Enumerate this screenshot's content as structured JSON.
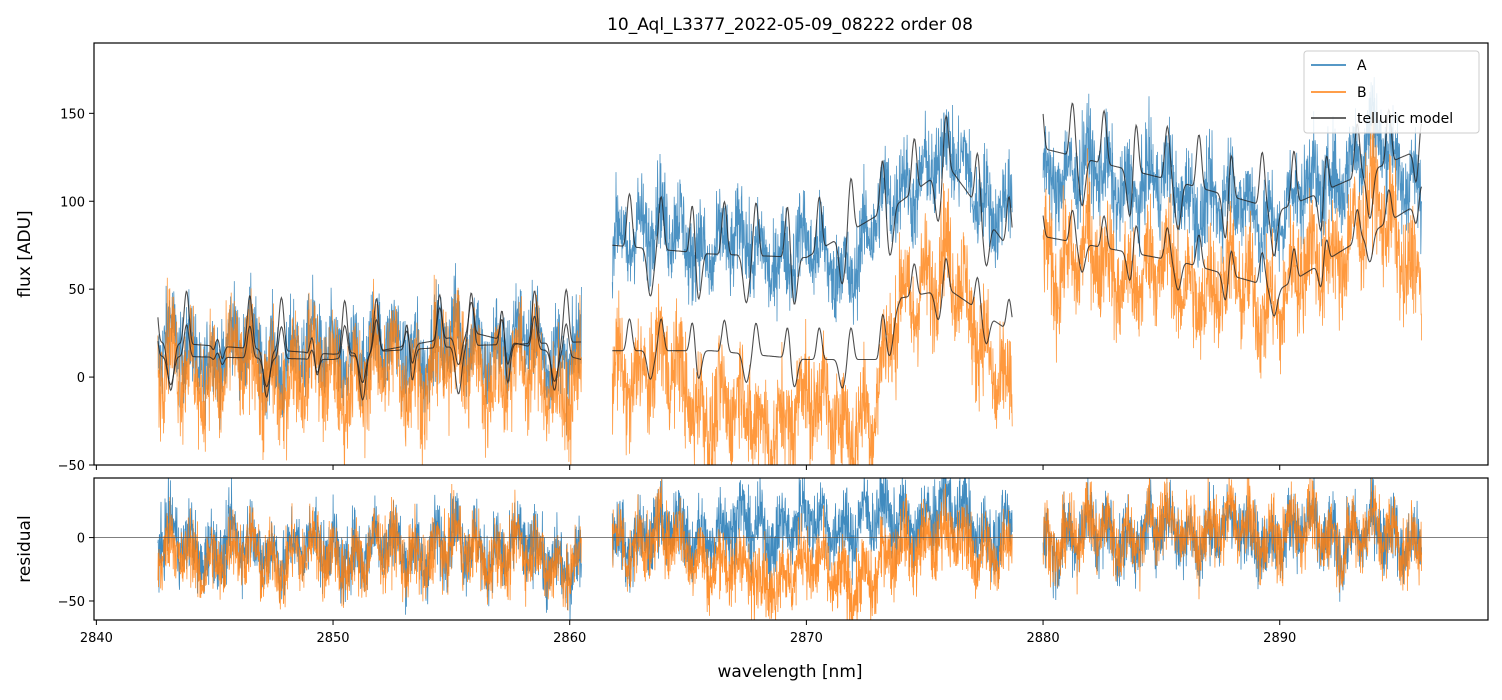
{
  "chart_data": {
    "type": "line",
    "title": "10_Aql_L3377_2022-05-09_08222  order 08",
    "xlabel": "wavelength [nm]",
    "x_range": [
      2839.9,
      2898.8
    ],
    "x_ticks": [
      2840,
      2850,
      2860,
      2870,
      2880,
      2890
    ],
    "x_tick_labels": [
      "2840",
      "2850",
      "2860",
      "2870",
      "2880",
      "2890"
    ],
    "segments": [
      [
        2842.6,
        2860.5
      ],
      [
        2861.8,
        2878.7
      ],
      [
        2880.0,
        2896.0
      ]
    ],
    "legend": {
      "position": "upper right",
      "entries": [
        {
          "label": "A",
          "color": "#1f77b4"
        },
        {
          "label": "B",
          "color": "#ff7f0e"
        },
        {
          "label": "telluric model",
          "color": "#333333"
        }
      ]
    },
    "top_panel": {
      "ylabel": "flux [ADU]",
      "ylim": [
        -50,
        190
      ],
      "y_ticks": [
        -50,
        0,
        50,
        100,
        150
      ],
      "y_tick_labels": [
        "−50",
        "0",
        "50",
        "100",
        "150"
      ],
      "series": [
        {
          "name": "A",
          "color": "#1f77b4",
          "noise": 18,
          "envelope": [
            [
              2842.6,
              15
            ],
            [
              2850,
              13
            ],
            [
              2856,
              20
            ],
            [
              2860.5,
              15
            ],
            [
              2861.8,
              80
            ],
            [
              2863,
              88
            ],
            [
              2866,
              74
            ],
            [
              2870,
              70
            ],
            [
              2872,
              65
            ],
            [
              2874,
              110
            ],
            [
              2876,
              125
            ],
            [
              2878.7,
              90
            ],
            [
              2880,
              120
            ],
            [
              2886,
              105
            ],
            [
              2890,
              92
            ],
            [
              2894,
              135
            ],
            [
              2896,
              110
            ]
          ]
        },
        {
          "name": "B",
          "color": "#ff7f0e",
          "noise": 22,
          "envelope": [
            [
              2842.6,
              5
            ],
            [
              2850,
              0
            ],
            [
              2856,
              8
            ],
            [
              2860.5,
              -5
            ],
            [
              2861.8,
              5
            ],
            [
              2864,
              5
            ],
            [
              2866,
              -18
            ],
            [
              2868,
              -25
            ],
            [
              2871,
              -15
            ],
            [
              2872.8,
              -30
            ],
            [
              2874,
              50
            ],
            [
              2876,
              60
            ],
            [
              2877.5,
              25
            ],
            [
              2878.7,
              -20
            ],
            [
              2880,
              70
            ],
            [
              2886,
              55
            ],
            [
              2890,
              45
            ],
            [
              2894,
              95
            ],
            [
              2896,
              60
            ]
          ]
        },
        {
          "name": "telluric model A",
          "color": "#222222",
          "envelope": [
            [
              2842.6,
              20
            ],
            [
              2850,
              13
            ],
            [
              2856,
              18
            ],
            [
              2860.5,
              20
            ],
            [
              2861.8,
              75
            ],
            [
              2866,
              70
            ],
            [
              2870,
              68
            ],
            [
              2874,
              100
            ],
            [
              2876,
              120
            ],
            [
              2878.7,
              70
            ],
            [
              2880,
              130
            ],
            [
              2886,
              110
            ],
            [
              2890,
              95
            ],
            [
              2896,
              130
            ]
          ]
        },
        {
          "name": "telluric model B",
          "color": "#222222",
          "envelope": [
            [
              2842.6,
              12
            ],
            [
              2850,
              10
            ],
            [
              2856,
              25
            ],
            [
              2860.5,
              10
            ],
            [
              2861.8,
              15
            ],
            [
              2866,
              15
            ],
            [
              2870,
              10
            ],
            [
              2873,
              10
            ],
            [
              2874,
              45
            ],
            [
              2876,
              50
            ],
            [
              2878.7,
              25
            ],
            [
              2880,
              80
            ],
            [
              2886,
              65
            ],
            [
              2890,
              50
            ],
            [
              2896,
              100
            ]
          ]
        }
      ]
    },
    "bottom_panel": {
      "ylabel": "residual",
      "ylim": [
        -65,
        47
      ],
      "y_ticks": [
        -50,
        0
      ],
      "y_tick_labels": [
        "−50",
        "0"
      ],
      "zero_line": 0,
      "series": [
        {
          "name": "A",
          "color": "#1f77b4",
          "noise": 20,
          "envelope": [
            [
              2842.6,
              -5
            ],
            [
              2850,
              -10
            ],
            [
              2856,
              -5
            ],
            [
              2860.5,
              -20
            ],
            [
              2861.8,
              0
            ],
            [
              2866,
              5
            ],
            [
              2870,
              10
            ],
            [
              2874,
              15
            ],
            [
              2876,
              20
            ],
            [
              2878.7,
              0
            ],
            [
              2880,
              0
            ],
            [
              2886,
              5
            ],
            [
              2896,
              0
            ]
          ]
        },
        {
          "name": "B",
          "color": "#ff7f0e",
          "noise": 20,
          "envelope": [
            [
              2842.6,
              -15
            ],
            [
              2850,
              -15
            ],
            [
              2856,
              -10
            ],
            [
              2860.5,
              -20
            ],
            [
              2861.8,
              0
            ],
            [
              2865,
              -5
            ],
            [
              2867,
              -30
            ],
            [
              2871,
              -25
            ],
            [
              2872.8,
              -40
            ],
            [
              2874,
              0
            ],
            [
              2878.7,
              -10
            ],
            [
              2880,
              0
            ],
            [
              2886,
              8
            ],
            [
              2896,
              0
            ]
          ]
        }
      ]
    }
  }
}
